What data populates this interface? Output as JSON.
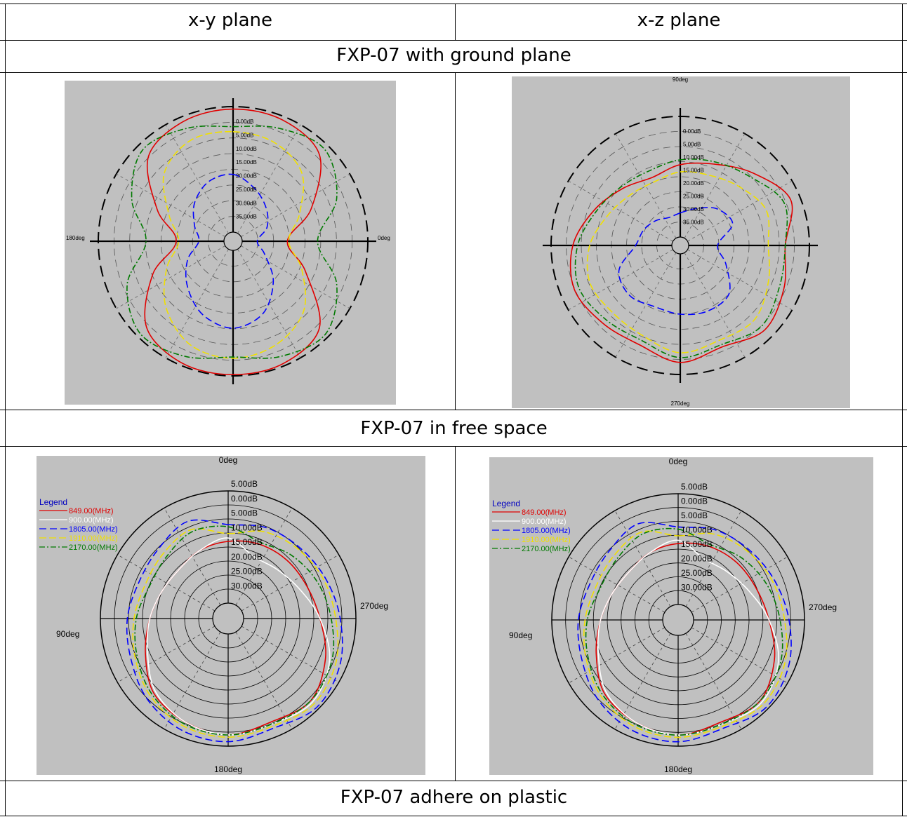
{
  "table": {
    "headers": [
      "x-y plane",
      "x-z plane"
    ],
    "section_labels": [
      "FXP-07 with ground plane",
      "FXP-07 in free space",
      "FXP-07 adhere on plastic"
    ]
  },
  "colors": {
    "background": "#c0c0c0",
    "849MHz": "#e00000",
    "900MHz": "#ffffff",
    "1805MHz": "#0000ff",
    "1910MHz": "#f0e000",
    "2170MHz": "#007a00"
  },
  "chart_data": [
    {
      "type": "polar",
      "panel": "ground-xy",
      "angle_labels": [
        "",
        "",
        "180deg",
        "0deg"
      ],
      "radial_labels": [
        "0.00dB",
        "5.00dB",
        "10.00dB",
        "15.00dB",
        "20.00dB",
        "25.00dB",
        "30.00dB",
        "35.00dB"
      ],
      "series": [
        {
          "color": "#e00000",
          "values": [
            0.98,
            0.97,
            0.9,
            0.6,
            0.36,
            0.55,
            0.9,
            0.98,
            0.99,
            0.98,
            0.9,
            0.62,
            0.38,
            0.58,
            0.88,
            0.96
          ]
        },
        {
          "color": "#f0e000",
          "values": [
            0.8,
            0.78,
            0.7,
            0.5,
            0.37,
            0.52,
            0.72,
            0.82,
            0.86,
            0.82,
            0.68,
            0.5,
            0.36,
            0.48,
            0.7,
            0.8
          ]
        },
        {
          "color": "#007a00",
          "values": [
            0.84,
            0.9,
            0.96,
            0.82,
            0.6,
            0.82,
            0.97,
            0.92,
            0.85,
            0.92,
            0.97,
            0.84,
            0.62,
            0.8,
            0.95,
            0.9
          ]
        },
        {
          "color": "#0000ff",
          "values": [
            0.46,
            0.38,
            0.3,
            0.22,
            0.12,
            0.2,
            0.38,
            0.55,
            0.62,
            0.56,
            0.44,
            0.32,
            0.2,
            0.26,
            0.36,
            0.44
          ]
        }
      ]
    },
    {
      "type": "polar",
      "panel": "ground-xz",
      "angle_labels": [
        "90deg",
        "270deg",
        "",
        ""
      ],
      "radial_labels": [
        "0.00dB",
        "5.00dB",
        "10.00dB",
        "15.00dB",
        "20.00dB",
        "25.00dB",
        "30.00dB",
        "35.00dB"
      ],
      "series": [
        {
          "color": "#e00000",
          "values": [
            0.6,
            0.66,
            0.78,
            0.92,
            0.8,
            0.86,
            0.92,
            0.84,
            0.9,
            0.82,
            0.84,
            0.88,
            0.82,
            0.7,
            0.6,
            0.54
          ]
        },
        {
          "color": "#007a00",
          "values": [
            0.64,
            0.68,
            0.74,
            0.86,
            0.8,
            0.82,
            0.88,
            0.82,
            0.86,
            0.78,
            0.8,
            0.84,
            0.78,
            0.68,
            0.62,
            0.6
          ]
        },
        {
          "color": "#f0e000",
          "values": [
            0.54,
            0.56,
            0.62,
            0.7,
            0.66,
            0.72,
            0.8,
            0.78,
            0.82,
            0.74,
            0.72,
            0.74,
            0.68,
            0.58,
            0.52,
            0.5
          ]
        },
        {
          "color": "#0000ff",
          "values": [
            0.2,
            0.26,
            0.36,
            0.4,
            0.24,
            0.34,
            0.5,
            0.52,
            0.5,
            0.48,
            0.52,
            0.48,
            0.3,
            0.26,
            0.22,
            0.18
          ]
        }
      ]
    },
    {
      "type": "polar",
      "panel": "free-xy",
      "angle_labels": [
        "0deg",
        "180deg",
        "90deg",
        "270deg"
      ],
      "radial_labels": [
        "5.00dB",
        "0.00dB",
        "5.00dB",
        "10.00dB",
        "15.00dB",
        "20.00dB",
        "25.00dB",
        "30.00dB"
      ],
      "legend": {
        "title": "Legend",
        "items": [
          "849.00(MHz)",
          "900.00(MHz)",
          "1805.00(MHz)",
          "1910.00(MHz)",
          "2170.00(MHz)"
        ]
      },
      "series": [
        {
          "name": "849.00(MHz)",
          "color": "#e00000",
          "values": [
            0.55,
            0.58,
            0.6,
            0.62,
            0.68,
            0.8,
            0.9,
            0.86,
            0.9,
            0.86,
            0.8,
            0.66,
            0.56,
            0.5,
            0.48,
            0.52
          ]
        },
        {
          "name": "900.00(MHz)",
          "color": "#ffffff",
          "values": [
            0.58,
            0.46,
            0.48,
            0.55,
            0.68,
            0.84,
            0.92,
            0.88,
            0.9,
            0.86,
            0.78,
            0.64,
            0.56,
            0.5,
            0.48,
            0.52
          ]
        },
        {
          "name": "1805.00(MHz)",
          "color": "#0000ff",
          "values": [
            0.7,
            0.74,
            0.76,
            0.8,
            0.86,
            0.94,
            0.98,
            0.92,
            0.96,
            0.94,
            0.88,
            0.8,
            0.76,
            0.72,
            0.74,
            0.8
          ]
        },
        {
          "name": "1910.00(MHz)",
          "color": "#f0e000",
          "values": [
            0.62,
            0.7,
            0.74,
            0.78,
            0.82,
            0.9,
            0.94,
            0.9,
            0.92,
            0.9,
            0.84,
            0.76,
            0.7,
            0.66,
            0.68,
            0.72
          ]
        },
        {
          "name": "2170.00(MHz)",
          "color": "#007a00",
          "values": [
            0.68,
            0.6,
            0.66,
            0.72,
            0.78,
            0.86,
            0.9,
            0.88,
            0.9,
            0.88,
            0.82,
            0.74,
            0.68,
            0.62,
            0.64,
            0.7
          ]
        }
      ]
    },
    {
      "type": "polar",
      "panel": "free-xz",
      "angle_labels": [
        "0deg",
        "180deg",
        "90deg",
        "270deg"
      ],
      "radial_labels": [
        "5.00dB",
        "0.00dB",
        "5.00dB",
        "10.00dB",
        "15.00dB",
        "20.00dB",
        "25.00dB",
        "30.00dB"
      ],
      "legend": {
        "title": "Legend",
        "items": [
          "849.00(MHz)",
          "900.00(MHz)",
          "1805.00(MHz)",
          "1910.00(MHz)",
          "2170.00(MHz)"
        ]
      },
      "series": [
        {
          "name": "849.00(MHz)",
          "color": "#e00000",
          "values": [
            0.55,
            0.58,
            0.6,
            0.62,
            0.68,
            0.8,
            0.9,
            0.86,
            0.9,
            0.86,
            0.8,
            0.66,
            0.56,
            0.5,
            0.48,
            0.52
          ]
        },
        {
          "name": "900.00(MHz)",
          "color": "#ffffff",
          "values": [
            0.58,
            0.46,
            0.48,
            0.55,
            0.68,
            0.84,
            0.92,
            0.88,
            0.9,
            0.86,
            0.78,
            0.64,
            0.56,
            0.5,
            0.48,
            0.52
          ]
        },
        {
          "name": "1805.00(MHz)",
          "color": "#0000ff",
          "values": [
            0.7,
            0.74,
            0.76,
            0.8,
            0.86,
            0.94,
            0.98,
            0.92,
            0.96,
            0.94,
            0.88,
            0.8,
            0.76,
            0.72,
            0.74,
            0.8
          ]
        },
        {
          "name": "1910.00(MHz)",
          "color": "#f0e000",
          "values": [
            0.62,
            0.7,
            0.74,
            0.78,
            0.82,
            0.9,
            0.94,
            0.9,
            0.92,
            0.9,
            0.84,
            0.76,
            0.7,
            0.66,
            0.68,
            0.72
          ]
        },
        {
          "name": "2170.00(MHz)",
          "color": "#007a00",
          "values": [
            0.68,
            0.6,
            0.66,
            0.72,
            0.78,
            0.86,
            0.9,
            0.88,
            0.9,
            0.88,
            0.82,
            0.74,
            0.68,
            0.62,
            0.64,
            0.7
          ]
        }
      ]
    }
  ]
}
